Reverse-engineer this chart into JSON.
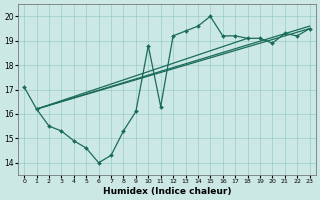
{
  "xlabel": "Humidex (Indice chaleur)",
  "background_color": "#cce8e4",
  "grid_color": "#99cccc",
  "line_color": "#1a6b5a",
  "xlim": [
    -0.5,
    23.5
  ],
  "ylim": [
    13.5,
    20.5
  ],
  "yticks": [
    14,
    15,
    16,
    17,
    18,
    19,
    20
  ],
  "xticks": [
    0,
    1,
    2,
    3,
    4,
    5,
    6,
    7,
    8,
    9,
    10,
    11,
    12,
    13,
    14,
    15,
    16,
    17,
    18,
    19,
    20,
    21,
    22,
    23
  ],
  "lines": [
    {
      "x": [
        0,
        1,
        2,
        3,
        4,
        5,
        6,
        7,
        8,
        9,
        10,
        11,
        12,
        13,
        14,
        15,
        16,
        17,
        18,
        19,
        20,
        21,
        22,
        23
      ],
      "y": [
        17.1,
        16.2,
        15.5,
        15.3,
        14.9,
        14.6,
        14.0,
        14.3,
        15.3,
        16.1,
        18.8,
        16.3,
        19.2,
        19.4,
        19.6,
        20.0,
        19.2,
        19.2,
        19.1,
        19.1,
        18.9,
        19.3,
        19.2,
        19.5
      ],
      "marker": "D",
      "markersize": 2.0,
      "linewidth": 0.9
    },
    {
      "x": [
        1,
        23
      ],
      "y": [
        16.2,
        19.5
      ],
      "marker": null,
      "linewidth": 0.9
    },
    {
      "x": [
        1,
        23
      ],
      "y": [
        16.2,
        19.6
      ],
      "marker": null,
      "linewidth": 0.9
    },
    {
      "x": [
        1,
        18
      ],
      "y": [
        16.2,
        19.1
      ],
      "marker": null,
      "linewidth": 0.9
    }
  ]
}
